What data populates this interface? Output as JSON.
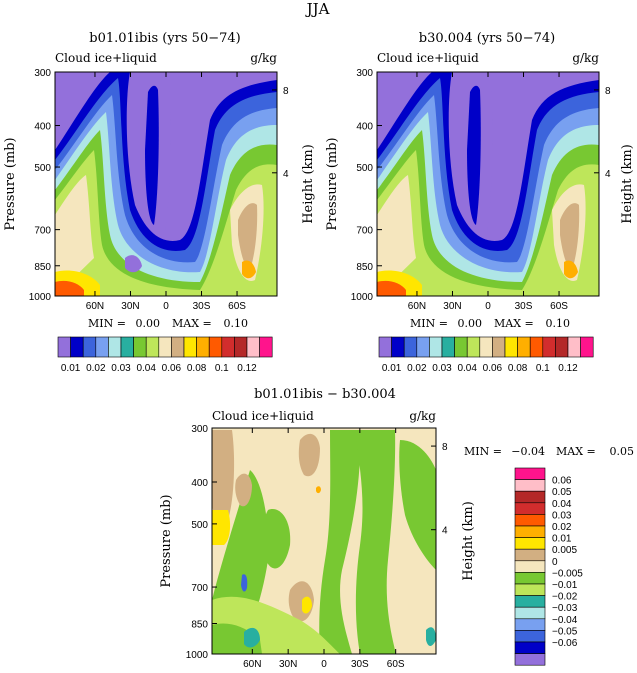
{
  "page": {
    "title": "JJA"
  },
  "colors": {
    "top_levels": [
      "#9370DB",
      "#0000C8",
      "#3C64DC",
      "#78A0F0",
      "#AFE6E6",
      "#28AFA0",
      "#78C832",
      "#BEE65A",
      "#F5E6BE",
      "#D2AF82",
      "#FFE600",
      "#FFAF00",
      "#FF5A00",
      "#D22D2D",
      "#B42828",
      "#FFBEC8",
      "#FF148C"
    ],
    "diff_levels": [
      "#9370DB",
      "#0000C8",
      "#3C64DC",
      "#78A0F0",
      "#AFE6E6",
      "#28AFA0",
      "#BEE65A",
      "#78C832",
      "#F5E6BE",
      "#D2AF82",
      "#FFE600",
      "#FFAF00",
      "#FF5A00",
      "#D22D2D",
      "#B42828",
      "#FFBEC8",
      "#FF148C"
    ]
  },
  "chart_data": [
    {
      "type": "heatmap",
      "title": "b01.01ibis (yrs 50−74)",
      "left_label": "Cloud ice+liquid",
      "right_label": "g/kg",
      "ylabel": "Pressure (mb)",
      "y2label": "Height (km)",
      "xticks": [
        "60N",
        "30N",
        "0",
        "30S",
        "60S"
      ],
      "yticks": [
        "300",
        "400",
        "500",
        "700",
        "850",
        "1000"
      ],
      "y2ticks": [
        "8",
        "4"
      ],
      "min_label": "MIN =",
      "min_value": "0.00",
      "max_label": "MAX =",
      "max_value": "0.10",
      "colorbar_labels": [
        "0.01",
        "0.02",
        "0.03",
        "0.04",
        "0.06",
        "0.08",
        "0.1",
        "0.12"
      ]
    },
    {
      "type": "heatmap",
      "title": "b30.004 (yrs 50−74)",
      "left_label": "Cloud ice+liquid",
      "right_label": "g/kg",
      "ylabel": "Pressure (mb)",
      "y2label": "Height (km)",
      "xticks": [
        "60N",
        "30N",
        "0",
        "30S",
        "60S"
      ],
      "yticks": [
        "300",
        "400",
        "500",
        "700",
        "850",
        "1000"
      ],
      "y2ticks": [
        "8",
        "4"
      ],
      "min_label": "MIN =",
      "min_value": "0.00",
      "max_label": "MAX =",
      "max_value": "0.10",
      "colorbar_labels": [
        "0.01",
        "0.02",
        "0.03",
        "0.04",
        "0.06",
        "0.08",
        "0.1",
        "0.12"
      ]
    },
    {
      "type": "heatmap",
      "title": "b01.01ibis − b30.004",
      "left_label": "Cloud ice+liquid",
      "right_label": "g/kg",
      "ylabel": "Pressure (mb)",
      "y2label": "Height (km)",
      "xticks": [
        "60N",
        "30N",
        "0",
        "30S",
        "60S"
      ],
      "yticks": [
        "300",
        "400",
        "500",
        "700",
        "850",
        "1000"
      ],
      "y2ticks": [
        "8",
        "4"
      ],
      "min_label": "MIN =",
      "min_value": "−0.04",
      "max_label": "MAX =",
      "max_value": "0.05",
      "colorbar_labels": [
        "0.06",
        "0.05",
        "0.04",
        "0.03",
        "0.02",
        "0.01",
        "0.005",
        "0",
        "−0.005",
        "−0.01",
        "−0.02",
        "−0.03",
        "−0.04",
        "−0.05",
        "−0.06"
      ]
    }
  ]
}
